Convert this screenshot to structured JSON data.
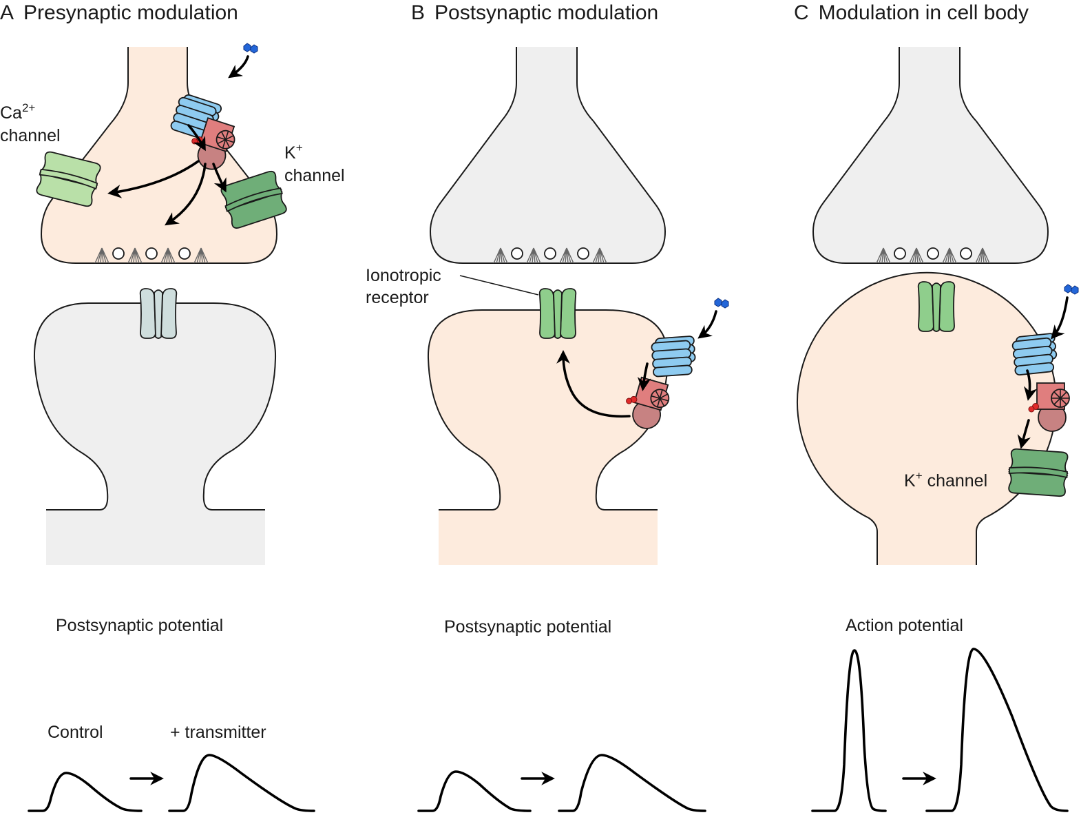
{
  "panels": [
    {
      "letter": "A",
      "title": "Presynaptic modulation",
      "labels": {
        "ca_line1": "Ca",
        "ca_sup": "2+",
        "ca_line2": "channel",
        "k_line1": "K",
        "k_sup": "+",
        "k_line2": "channel"
      },
      "trace_title": "Postsynaptic potential",
      "control_label": "Control",
      "transmitter_label": "+ transmitter"
    },
    {
      "letter": "B",
      "title": "Postsynaptic modulation",
      "labels": {
        "ionotropic_line1": "Ionotropic",
        "ionotropic_line2": "receptor"
      },
      "trace_title": "Postsynaptic potential"
    },
    {
      "letter": "C",
      "title": "Modulation in cell body",
      "labels": {
        "k_main": "K",
        "k_sup": "+",
        "k_rest": " channel"
      },
      "trace_title": "Action potential"
    }
  ],
  "colors": {
    "presynaptic_fill": "#fdebdd",
    "neutral_fill": "#efefef",
    "gpcr_blue": "#8ecbf0",
    "gprotein_red": "#e07e7e",
    "gprotein_beta": "#c78282",
    "ionotropic_green": "#8fce8c",
    "ca_channel_green": "#b9e0a8",
    "k_channel_green": "#6fae78",
    "inactive_receptor": "#cfdedd",
    "ligand_blue": "#2366d8"
  }
}
